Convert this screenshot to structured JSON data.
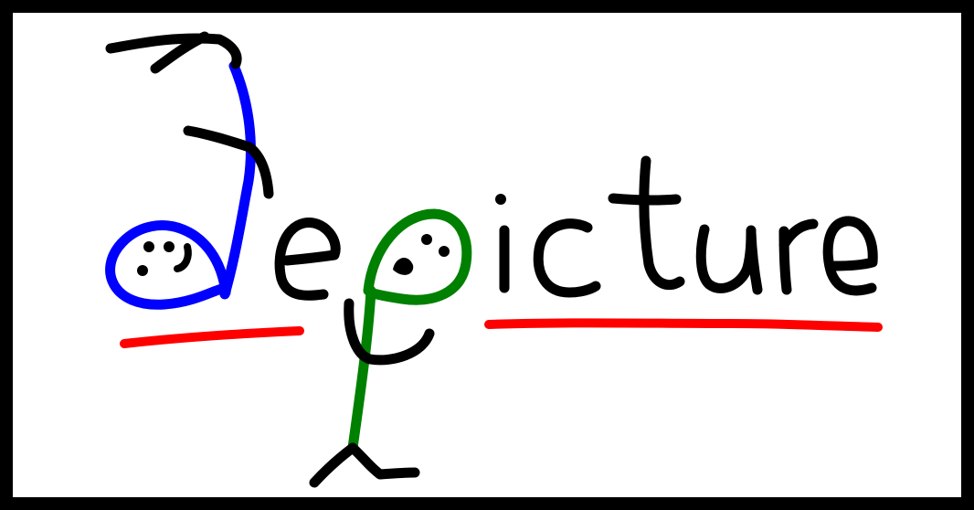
{
  "logo": {
    "wordmark": "Depicture",
    "colors": {
      "frame": "#000000",
      "background": "#ffffff",
      "ink": "#000000",
      "blue_figure": "#0000ff",
      "green_figure": "#008000",
      "underline": "#ff0000"
    }
  }
}
